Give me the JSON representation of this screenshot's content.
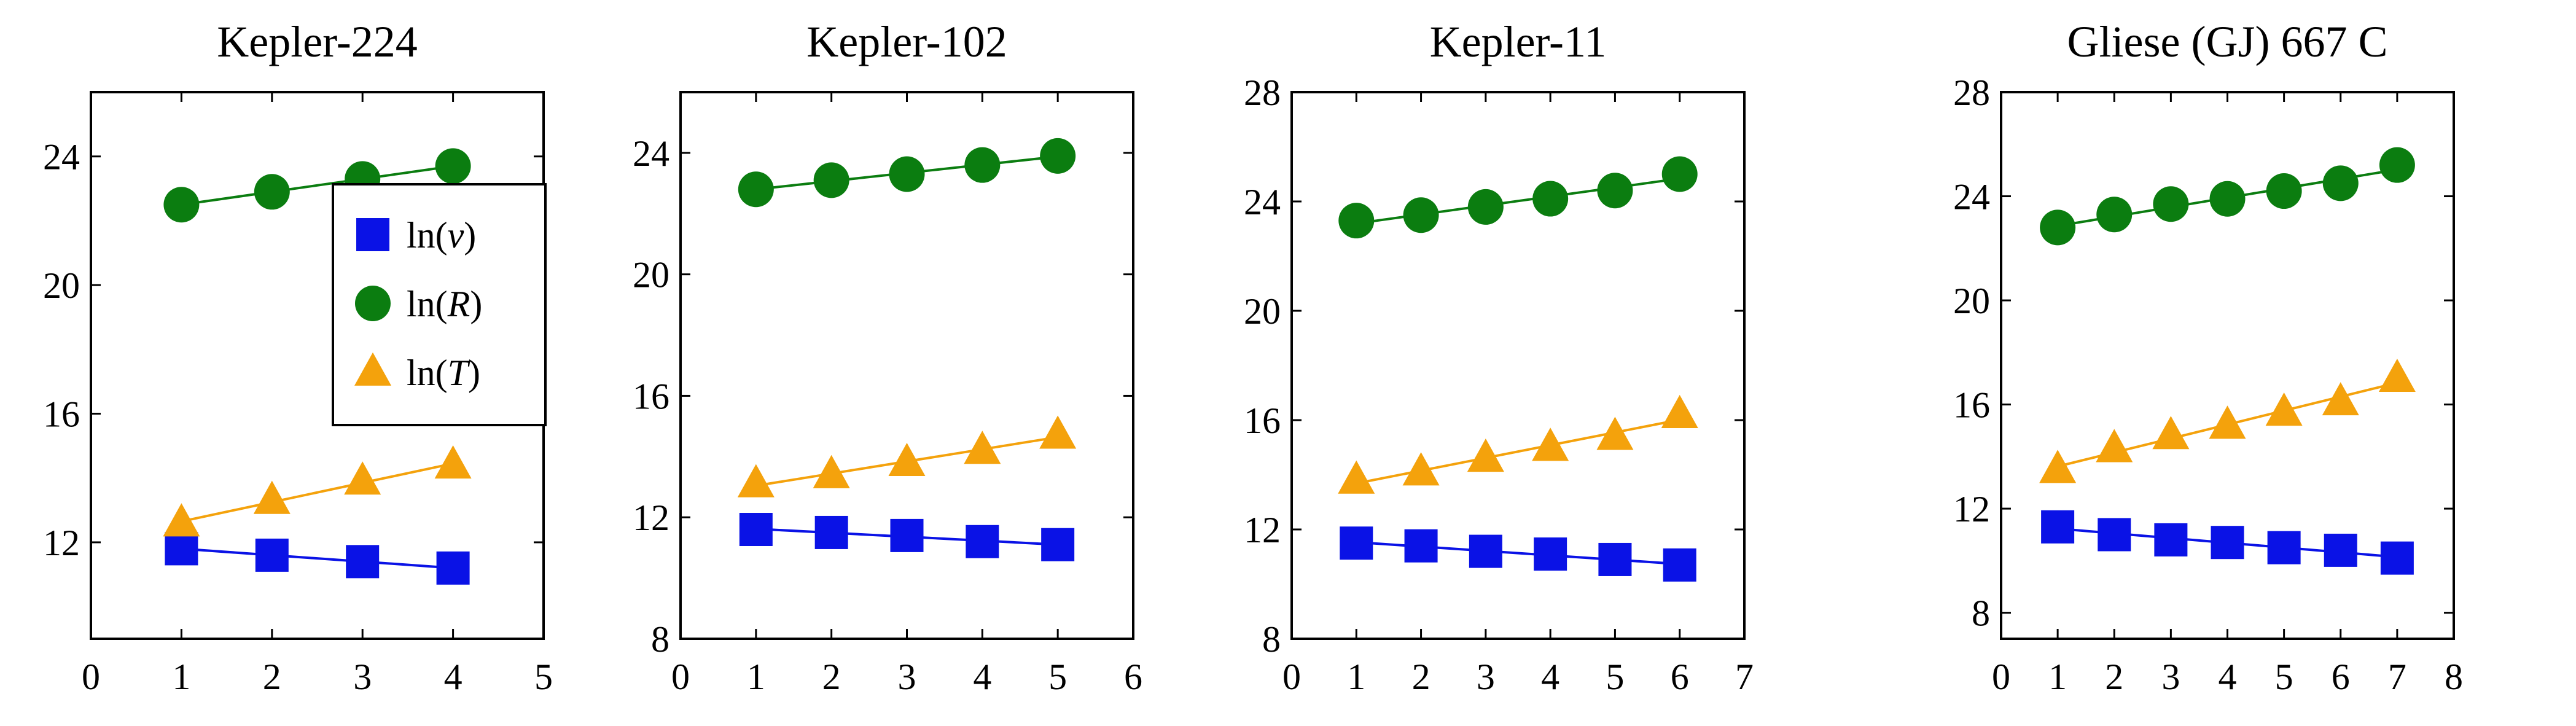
{
  "colors": {
    "v": "#0a12e6",
    "R": "#0b7d10",
    "T": "#f4a20c"
  },
  "legend": {
    "items": [
      {
        "key": "v",
        "prefix": "ln(",
        "var": "v",
        "suffix": ")"
      },
      {
        "key": "R",
        "prefix": "ln(",
        "var": "R",
        "suffix": ")"
      },
      {
        "key": "T",
        "prefix": "ln(",
        "var": "T",
        "suffix": ")"
      }
    ]
  },
  "chart_data": [
    {
      "type": "scatter",
      "title": "Kepler-224",
      "xlim": [
        0,
        5
      ],
      "ylim": [
        9,
        26
      ],
      "xticks": [
        0,
        1,
        2,
        3,
        4,
        5
      ],
      "yticks": [
        12,
        16,
        20,
        24
      ],
      "x": [
        1,
        2,
        3,
        4
      ],
      "series": [
        {
          "name": "ln(v)",
          "key": "v",
          "marker": "square",
          "values": [
            11.8,
            11.6,
            11.4,
            11.2
          ]
        },
        {
          "name": "ln(R)",
          "key": "R",
          "marker": "circle",
          "values": [
            22.5,
            22.9,
            23.3,
            23.7
          ]
        },
        {
          "name": "ln(T)",
          "key": "T",
          "marker": "triangle",
          "values": [
            12.6,
            13.3,
            13.9,
            14.4
          ]
        }
      ],
      "legend": true
    },
    {
      "type": "scatter",
      "title": "Kepler-102",
      "xlim": [
        0,
        6
      ],
      "ylim": [
        8,
        26
      ],
      "xticks": [
        0,
        1,
        2,
        3,
        4,
        5,
        6
      ],
      "yticks": [
        8,
        12,
        16,
        20,
        24
      ],
      "x": [
        1,
        2,
        3,
        4,
        5
      ],
      "series": [
        {
          "name": "ln(v)",
          "key": "v",
          "marker": "square",
          "values": [
            11.6,
            11.5,
            11.4,
            11.2,
            11.1
          ]
        },
        {
          "name": "ln(R)",
          "key": "R",
          "marker": "circle",
          "values": [
            22.8,
            23.1,
            23.3,
            23.6,
            23.9
          ]
        },
        {
          "name": "ln(T)",
          "key": "T",
          "marker": "triangle",
          "values": [
            13.1,
            13.4,
            13.8,
            14.2,
            14.7
          ]
        }
      ],
      "legend": false
    },
    {
      "type": "scatter",
      "title": "Kepler-11",
      "xlim": [
        0,
        7
      ],
      "ylim": [
        8,
        28
      ],
      "xticks": [
        0,
        1,
        2,
        3,
        4,
        5,
        6,
        7
      ],
      "yticks": [
        8,
        12,
        16,
        20,
        24,
        28
      ],
      "x": [
        1,
        2,
        3,
        4,
        5,
        6
      ],
      "series": [
        {
          "name": "ln(v)",
          "key": "v",
          "marker": "square",
          "values": [
            11.5,
            11.4,
            11.2,
            11.1,
            10.9,
            10.7
          ]
        },
        {
          "name": "ln(R)",
          "key": "R",
          "marker": "circle",
          "values": [
            23.3,
            23.5,
            23.8,
            24.1,
            24.4,
            25.0
          ]
        },
        {
          "name": "ln(T)",
          "key": "T",
          "marker": "triangle",
          "values": [
            13.8,
            14.1,
            14.6,
            15.0,
            15.4,
            16.2
          ]
        }
      ],
      "legend": false
    },
    {
      "type": "scatter",
      "title": "Gliese (GJ) 667 C",
      "xlim": [
        0,
        8
      ],
      "ylim": [
        7,
        28
      ],
      "xticks": [
        0,
        1,
        2,
        3,
        4,
        5,
        6,
        7,
        8
      ],
      "yticks": [
        8,
        12,
        16,
        20,
        24,
        28
      ],
      "x": [
        1,
        2,
        3,
        4,
        5,
        6,
        7
      ],
      "series": [
        {
          "name": "ln(v)",
          "key": "v",
          "marker": "square",
          "values": [
            11.3,
            11.0,
            10.8,
            10.7,
            10.5,
            10.4,
            10.1
          ]
        },
        {
          "name": "ln(R)",
          "key": "R",
          "marker": "circle",
          "values": [
            22.8,
            23.3,
            23.7,
            23.9,
            24.2,
            24.5,
            25.2
          ]
        },
        {
          "name": "ln(T)",
          "key": "T",
          "marker": "triangle",
          "values": [
            13.5,
            14.3,
            14.8,
            15.2,
            15.7,
            16.1,
            17.0
          ]
        }
      ],
      "legend": false
    }
  ]
}
